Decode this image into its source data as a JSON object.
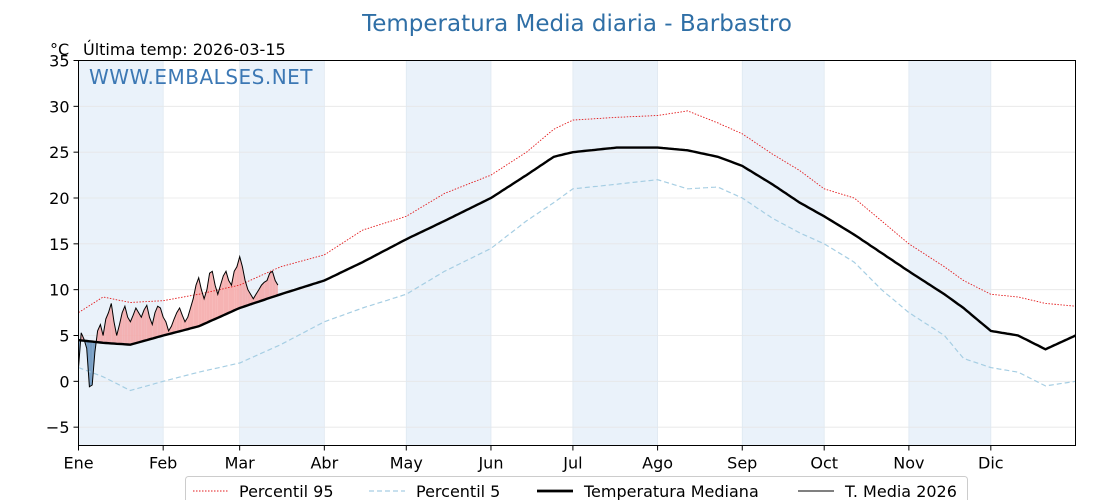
{
  "chart_data": {
    "type": "line",
    "title": "Temperatura Media diaria - Barbastro",
    "unit": "°C",
    "subtitle": "Última temp: 2026-03-15",
    "watermark": "WWW.EMBALSES.NET",
    "xlabel": "",
    "ylabel": "",
    "x_ticks": [
      "Ene",
      "Feb",
      "Mar",
      "Abr",
      "May",
      "Jun",
      "Jul",
      "Ago",
      "Sep",
      "Oct",
      "Nov",
      "Dic"
    ],
    "y_ticks": [
      -5,
      0,
      5,
      10,
      15,
      20,
      25,
      30,
      35
    ],
    "ylim": [
      -7,
      35
    ],
    "xlim": [
      1,
      366
    ],
    "month_start_days": [
      1,
      32,
      60,
      91,
      121,
      152,
      182,
      213,
      244,
      274,
      305,
      335
    ],
    "shaded_months": [
      "Ene",
      "Mar",
      "May",
      "Jul",
      "Sep",
      "Nov"
    ],
    "grid": true,
    "legend_position": "bottom",
    "colors": {
      "p95": "#e31a1c",
      "p5": "#a6cee3",
      "mediana": "#000000",
      "media": "#000000",
      "above_fill": "#f4a6a6",
      "below_fill": "#6d96be",
      "band": "#eaf2fa",
      "title": "#2f6fa6",
      "watermark": "#3c78b4"
    },
    "series": [
      {
        "name": "Percentil 95",
        "style": "dotted",
        "points": [
          [
            1,
            7.5
          ],
          [
            10,
            9.2
          ],
          [
            20,
            8.6
          ],
          [
            32,
            8.8
          ],
          [
            45,
            9.5
          ],
          [
            60,
            10.5
          ],
          [
            75,
            12.5
          ],
          [
            91,
            13.8
          ],
          [
            105,
            16.5
          ],
          [
            121,
            18.0
          ],
          [
            135,
            20.5
          ],
          [
            152,
            22.5
          ],
          [
            165,
            25.0
          ],
          [
            175,
            27.5
          ],
          [
            182,
            28.5
          ],
          [
            198,
            28.8
          ],
          [
            213,
            29.0
          ],
          [
            224,
            29.5
          ],
          [
            235,
            28.2
          ],
          [
            244,
            27.0
          ],
          [
            255,
            24.8
          ],
          [
            265,
            23.0
          ],
          [
            274,
            21.0
          ],
          [
            285,
            20.0
          ],
          [
            295,
            17.5
          ],
          [
            305,
            15.0
          ],
          [
            318,
            12.5
          ],
          [
            325,
            11.0
          ],
          [
            335,
            9.5
          ],
          [
            345,
            9.2
          ],
          [
            355,
            8.5
          ],
          [
            366,
            8.2
          ]
        ]
      },
      {
        "name": "Percentil 5",
        "style": "dashed",
        "points": [
          [
            1,
            1.5
          ],
          [
            10,
            0.5
          ],
          [
            20,
            -1.0
          ],
          [
            32,
            0.0
          ],
          [
            45,
            1.0
          ],
          [
            60,
            2.0
          ],
          [
            75,
            4.0
          ],
          [
            91,
            6.5
          ],
          [
            105,
            8.0
          ],
          [
            121,
            9.5
          ],
          [
            135,
            12.0
          ],
          [
            152,
            14.5
          ],
          [
            165,
            17.5
          ],
          [
            175,
            19.5
          ],
          [
            182,
            21.0
          ],
          [
            198,
            21.5
          ],
          [
            213,
            22.0
          ],
          [
            224,
            21.0
          ],
          [
            235,
            21.2
          ],
          [
            244,
            20.0
          ],
          [
            255,
            17.8
          ],
          [
            265,
            16.2
          ],
          [
            274,
            15.0
          ],
          [
            285,
            13.0
          ],
          [
            295,
            10.0
          ],
          [
            305,
            7.5
          ],
          [
            318,
            5.0
          ],
          [
            325,
            2.5
          ],
          [
            335,
            1.5
          ],
          [
            345,
            1.0
          ],
          [
            355,
            -0.5
          ],
          [
            366,
            0.0
          ]
        ]
      },
      {
        "name": "Temperatura Mediana",
        "style": "thick",
        "points": [
          [
            1,
            4.5
          ],
          [
            10,
            4.2
          ],
          [
            20,
            4.0
          ],
          [
            32,
            5.0
          ],
          [
            45,
            6.0
          ],
          [
            60,
            8.0
          ],
          [
            75,
            9.5
          ],
          [
            91,
            11.0
          ],
          [
            105,
            13.0
          ],
          [
            121,
            15.5
          ],
          [
            135,
            17.5
          ],
          [
            152,
            20.0
          ],
          [
            165,
            22.5
          ],
          [
            175,
            24.5
          ],
          [
            182,
            25.0
          ],
          [
            198,
            25.5
          ],
          [
            213,
            25.5
          ],
          [
            224,
            25.2
          ],
          [
            235,
            24.5
          ],
          [
            244,
            23.5
          ],
          [
            255,
            21.5
          ],
          [
            265,
            19.5
          ],
          [
            274,
            18.0
          ],
          [
            285,
            16.0
          ],
          [
            295,
            14.0
          ],
          [
            305,
            12.0
          ],
          [
            318,
            9.5
          ],
          [
            325,
            8.0
          ],
          [
            335,
            5.5
          ],
          [
            345,
            5.0
          ],
          [
            355,
            3.5
          ],
          [
            366,
            5.0
          ]
        ]
      },
      {
        "name": "T. Media 2026",
        "style": "thin",
        "points": [
          [
            1,
            1.5
          ],
          [
            2,
            5.3
          ],
          [
            3,
            4.6
          ],
          [
            4,
            3.6
          ],
          [
            5,
            -0.6
          ],
          [
            6,
            -0.4
          ],
          [
            7,
            3.2
          ],
          [
            8,
            5.5
          ],
          [
            9,
            6.2
          ],
          [
            10,
            5.0
          ],
          [
            11,
            6.8
          ],
          [
            12,
            7.5
          ],
          [
            13,
            8.5
          ],
          [
            14,
            6.5
          ],
          [
            15,
            5.0
          ],
          [
            16,
            6.2
          ],
          [
            17,
            7.5
          ],
          [
            18,
            8.2
          ],
          [
            19,
            7.0
          ],
          [
            20,
            6.5
          ],
          [
            21,
            7.2
          ],
          [
            22,
            8.0
          ],
          [
            23,
            7.5
          ],
          [
            24,
            7.0
          ],
          [
            25,
            7.8
          ],
          [
            26,
            8.3
          ],
          [
            27,
            7.0
          ],
          [
            28,
            6.2
          ],
          [
            29,
            7.5
          ],
          [
            30,
            8.2
          ],
          [
            31,
            8.0
          ],
          [
            32,
            7.0
          ],
          [
            33,
            6.5
          ],
          [
            34,
            5.5
          ],
          [
            35,
            6.0
          ],
          [
            36,
            6.8
          ],
          [
            37,
            7.5
          ],
          [
            38,
            8.0
          ],
          [
            39,
            7.2
          ],
          [
            40,
            6.5
          ],
          [
            41,
            7.0
          ],
          [
            42,
            8.0
          ],
          [
            43,
            9.0
          ],
          [
            44,
            10.5
          ],
          [
            45,
            11.3
          ],
          [
            46,
            10.0
          ],
          [
            47,
            9.0
          ],
          [
            48,
            10.0
          ],
          [
            49,
            11.8
          ],
          [
            50,
            12.0
          ],
          [
            51,
            10.5
          ],
          [
            52,
            9.5
          ],
          [
            53,
            10.5
          ],
          [
            54,
            11.5
          ],
          [
            55,
            12.0
          ],
          [
            56,
            11.0
          ],
          [
            57,
            10.5
          ],
          [
            58,
            12.0
          ],
          [
            59,
            12.5
          ],
          [
            60,
            13.6
          ],
          [
            61,
            12.5
          ],
          [
            62,
            11.0
          ],
          [
            63,
            10.0
          ],
          [
            64,
            9.5
          ],
          [
            65,
            9.0
          ],
          [
            66,
            9.5
          ],
          [
            67,
            10.0
          ],
          [
            68,
            10.5
          ],
          [
            69,
            10.8
          ],
          [
            70,
            11.0
          ],
          [
            71,
            11.8
          ],
          [
            72,
            12.0
          ],
          [
            73,
            11.0
          ],
          [
            74,
            10.5
          ]
        ]
      }
    ]
  }
}
